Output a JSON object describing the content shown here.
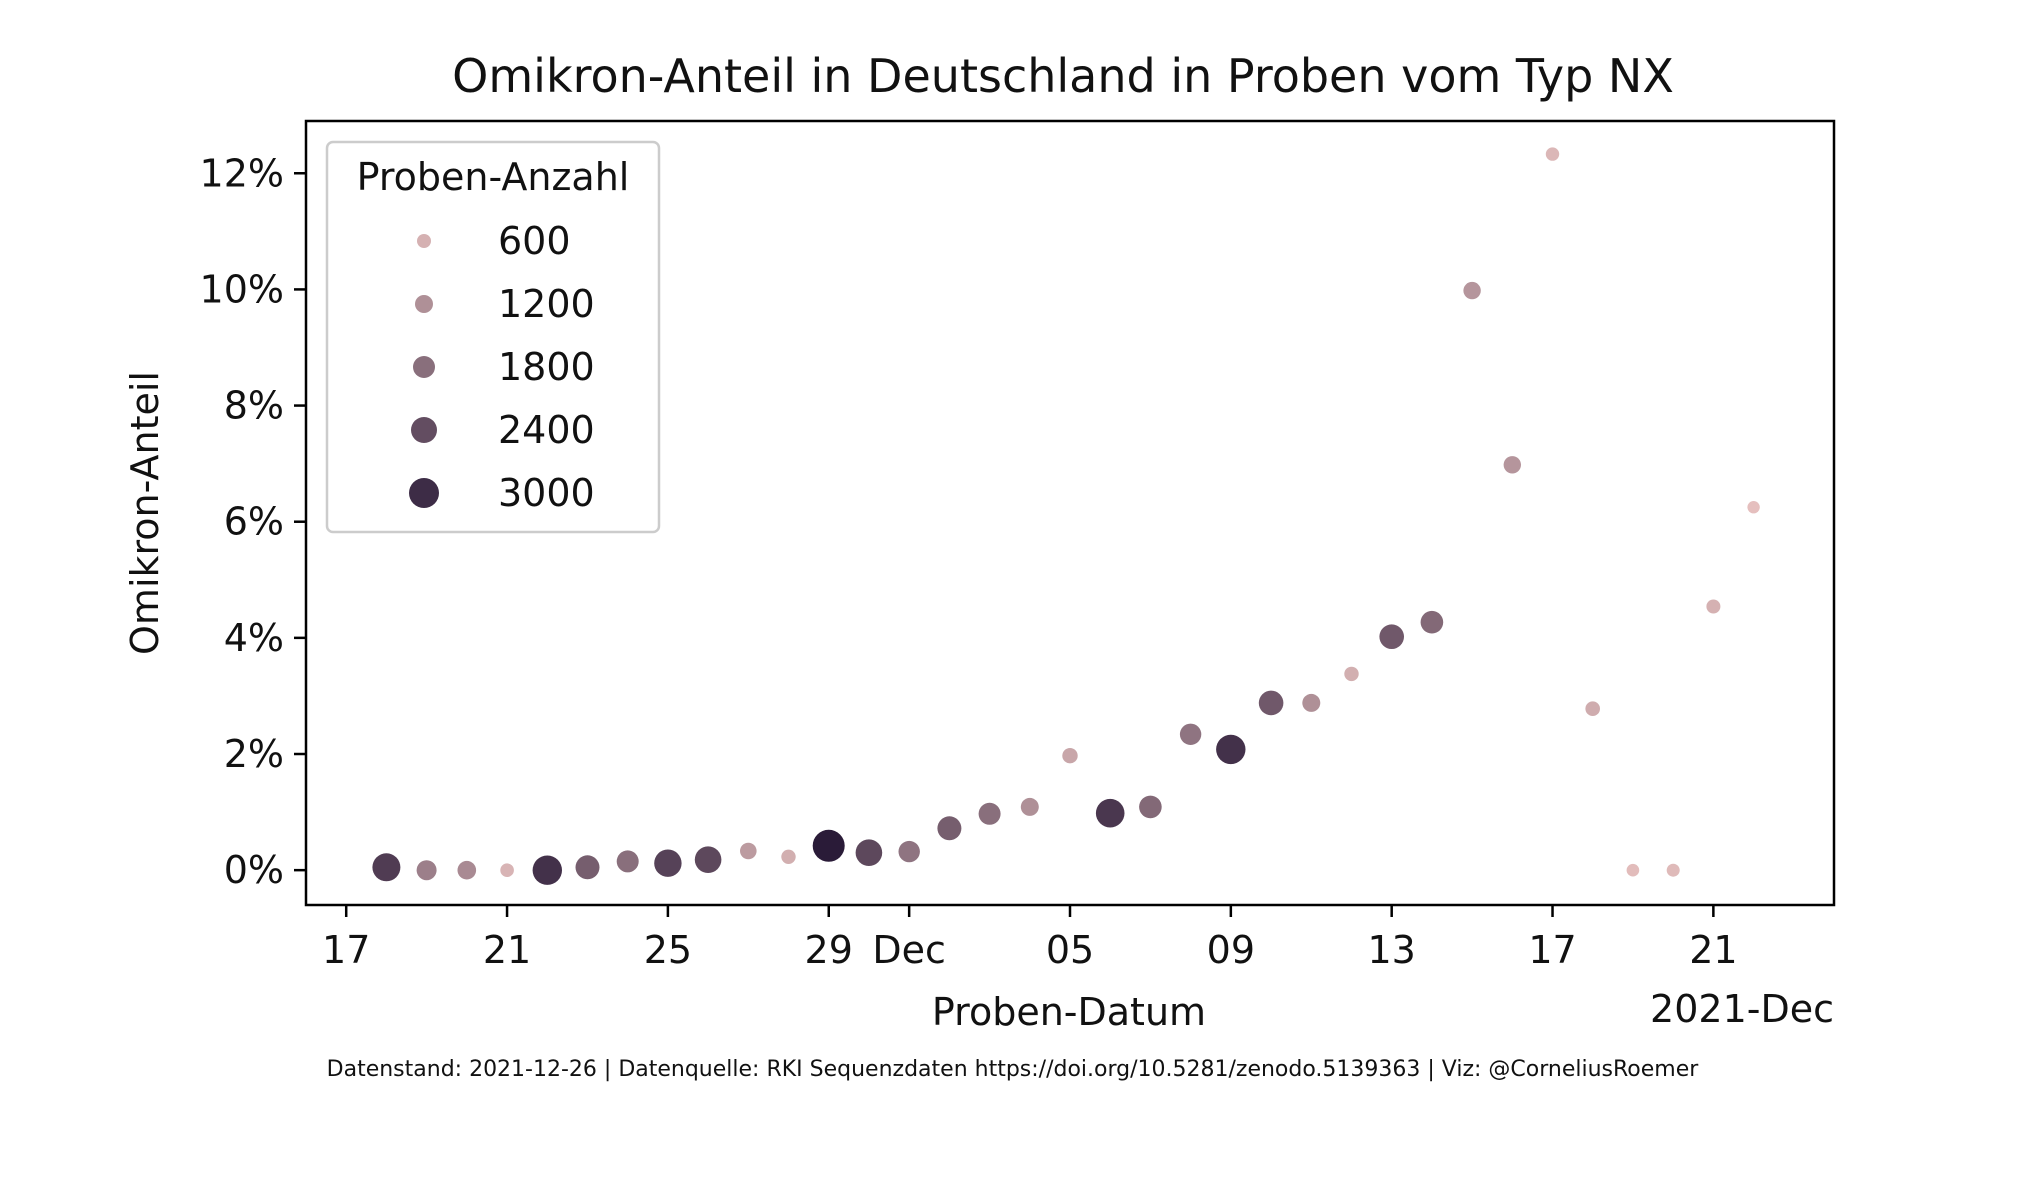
{
  "chart_data": {
    "type": "scatter",
    "title": "Omikron-Anteil in Deutschland in Proben vom Typ NX",
    "xlabel": "Proben-Datum",
    "ylabel": "Omikron-Anteil",
    "x_period_label": "2021-Dec",
    "x_ticks": [
      {
        "date": "2021-11-17",
        "label": "17"
      },
      {
        "date": "2021-11-21",
        "label": "21"
      },
      {
        "date": "2021-11-25",
        "label": "25"
      },
      {
        "date": "2021-11-29",
        "label": "29"
      },
      {
        "date": "2021-12-01",
        "label": "Dec"
      },
      {
        "date": "2021-12-05",
        "label": "05"
      },
      {
        "date": "2021-12-09",
        "label": "09"
      },
      {
        "date": "2021-12-13",
        "label": "13"
      },
      {
        "date": "2021-12-17",
        "label": "17"
      },
      {
        "date": "2021-12-21",
        "label": "21"
      }
    ],
    "y_ticks": [
      {
        "value": 0,
        "label": "0%"
      },
      {
        "value": 2,
        "label": "2%"
      },
      {
        "value": 4,
        "label": "4%"
      },
      {
        "value": 6,
        "label": "6%"
      },
      {
        "value": 8,
        "label": "8%"
      },
      {
        "value": 10,
        "label": "10%"
      },
      {
        "value": 12,
        "label": "12%"
      }
    ],
    "xlim": [
      "2021-11-16",
      "2021-12-24"
    ],
    "ylim": [
      -0.6,
      12.9
    ],
    "grid": false,
    "legend": {
      "title": "Proben-Anzahl",
      "placement": "top-left",
      "entries": [
        {
          "label": "600",
          "count": 600
        },
        {
          "label": "1200",
          "count": 1200
        },
        {
          "label": "1800",
          "count": 1800
        },
        {
          "label": "2400",
          "count": 2400
        },
        {
          "label": "3000",
          "count": 3000
        }
      ]
    },
    "count_range": [
      300,
      3300
    ],
    "colors": {
      "light": "#e8c2c0",
      "dark": "#2a1b38"
    },
    "points": [
      {
        "date": "2021-11-18",
        "value": 0.05,
        "count": 2700
      },
      {
        "date": "2021-11-19",
        "value": 0.0,
        "count": 1500
      },
      {
        "date": "2021-11-20",
        "value": 0.0,
        "count": 1300
      },
      {
        "date": "2021-11-21",
        "value": 0.0,
        "count": 550
      },
      {
        "date": "2021-11-22",
        "value": 0.0,
        "count": 2900
      },
      {
        "date": "2021-11-23",
        "value": 0.05,
        "count": 2100
      },
      {
        "date": "2021-11-24",
        "value": 0.15,
        "count": 1800
      },
      {
        "date": "2021-11-25",
        "value": 0.12,
        "count": 2600
      },
      {
        "date": "2021-11-26",
        "value": 0.18,
        "count": 2500
      },
      {
        "date": "2021-11-27",
        "value": 0.33,
        "count": 1000
      },
      {
        "date": "2021-11-28",
        "value": 0.23,
        "count": 650
      },
      {
        "date": "2021-11-29",
        "value": 0.42,
        "count": 3300
      },
      {
        "date": "2021-11-30",
        "value": 0.3,
        "count": 2500
      },
      {
        "date": "2021-12-01",
        "value": 0.32,
        "count": 1700
      },
      {
        "date": "2021-12-02",
        "value": 0.72,
        "count": 2100
      },
      {
        "date": "2021-12-03",
        "value": 0.97,
        "count": 1800
      },
      {
        "date": "2021-12-04",
        "value": 1.09,
        "count": 1200
      },
      {
        "date": "2021-12-05",
        "value": 1.97,
        "count": 800
      },
      {
        "date": "2021-12-06",
        "value": 0.98,
        "count": 2800
      },
      {
        "date": "2021-12-07",
        "value": 1.09,
        "count": 1900
      },
      {
        "date": "2021-12-08",
        "value": 2.34,
        "count": 1700
      },
      {
        "date": "2021-12-09",
        "value": 2.08,
        "count": 2900
      },
      {
        "date": "2021-12-10",
        "value": 2.88,
        "count": 2200
      },
      {
        "date": "2021-12-11",
        "value": 2.88,
        "count": 1200
      },
      {
        "date": "2021-12-12",
        "value": 3.38,
        "count": 650
      },
      {
        "date": "2021-12-13",
        "value": 4.02,
        "count": 2200
      },
      {
        "date": "2021-12-14",
        "value": 4.27,
        "count": 1900
      },
      {
        "date": "2021-12-15",
        "value": 9.98,
        "count": 1100
      },
      {
        "date": "2021-12-16",
        "value": 6.98,
        "count": 1100
      },
      {
        "date": "2021-12-17",
        "value": 12.33,
        "count": 500
      },
      {
        "date": "2021-12-18",
        "value": 2.78,
        "count": 700
      },
      {
        "date": "2021-12-19",
        "value": 0.0,
        "count": 400
      },
      {
        "date": "2021-12-20",
        "value": 0.0,
        "count": 450
      },
      {
        "date": "2021-12-21",
        "value": 4.54,
        "count": 600
      },
      {
        "date": "2021-12-22",
        "value": 6.25,
        "count": 350
      }
    ]
  },
  "footnote": "Datenstand: 2021-12-26 | Datenquelle: RKI Sequenzdaten https://doi.org/10.5281/zenodo.5139363 | Viz: @CorneliusRoemer"
}
